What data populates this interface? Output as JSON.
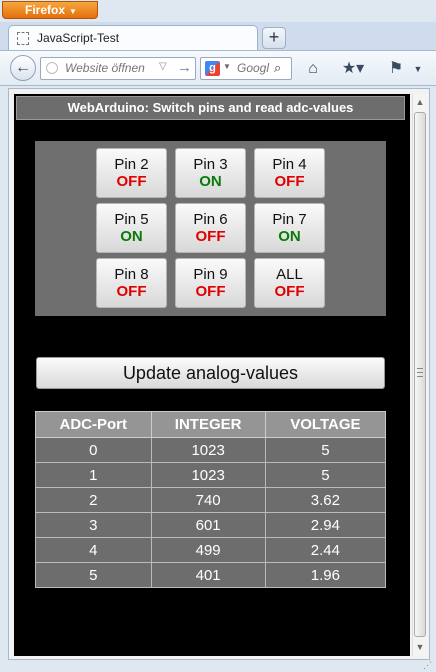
{
  "browser": {
    "menu_button": "Firefox",
    "tab_title": "JavaScript-Test",
    "new_tab": "+",
    "url_placeholder": "Website öffnen",
    "search_placeholder": "Googl",
    "search_engine_icon": "google-icon",
    "toolbar_icons": [
      "back-icon",
      "home-icon",
      "bookmark-icon",
      "addon-icon",
      "menu-icon"
    ]
  },
  "page": {
    "title": "WebArduino: Switch pins and read adc-values",
    "pins": [
      {
        "name": "Pin 2",
        "state": "OFF"
      },
      {
        "name": "Pin 3",
        "state": "ON"
      },
      {
        "name": "Pin 4",
        "state": "OFF"
      },
      {
        "name": "Pin 5",
        "state": "ON"
      },
      {
        "name": "Pin 6",
        "state": "OFF"
      },
      {
        "name": "Pin 7",
        "state": "ON"
      },
      {
        "name": "Pin 8",
        "state": "OFF"
      },
      {
        "name": "Pin 9",
        "state": "OFF"
      },
      {
        "name": "ALL",
        "state": "OFF"
      }
    ],
    "update_button": "Update analog-values",
    "table": {
      "headers": [
        "ADC-Port",
        "INTEGER",
        "VOLTAGE"
      ],
      "rows": [
        [
          "0",
          "1023",
          "5"
        ],
        [
          "1",
          "1023",
          "5"
        ],
        [
          "2",
          "740",
          "3.62"
        ],
        [
          "3",
          "601",
          "2.94"
        ],
        [
          "4",
          "499",
          "2.44"
        ],
        [
          "5",
          "401",
          "1.96"
        ]
      ]
    }
  },
  "colors": {
    "state_on": "#0a7a0a",
    "state_off": "#e00000",
    "page_background": "#000000",
    "panel": "#6f6f6f"
  }
}
